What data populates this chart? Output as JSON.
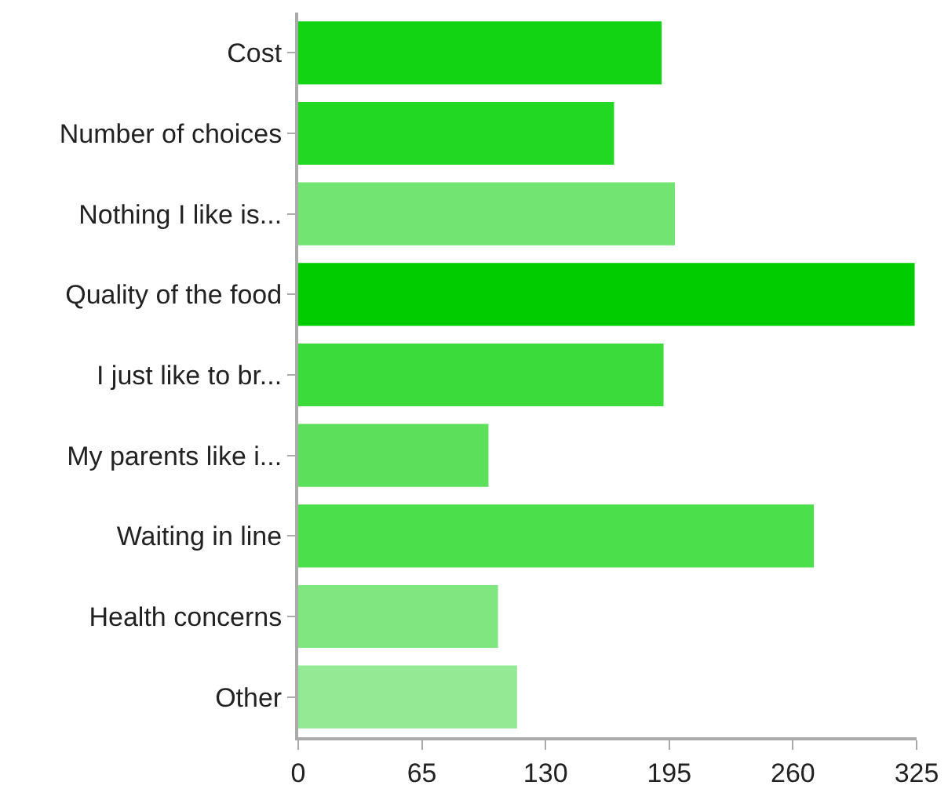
{
  "chart_data": {
    "type": "bar",
    "orientation": "horizontal",
    "categories": [
      "Cost",
      "Number of choices",
      "Nothing I like is...",
      "Quality of the food",
      "I just like to br...",
      "My parents like i...",
      "Waiting in line",
      "Health concerns",
      "Other"
    ],
    "values": [
      191,
      166,
      198,
      324,
      192,
      100,
      271,
      105,
      115
    ],
    "colors": [
      "#12d412",
      "#22d822",
      "#72e472",
      "#00cc00",
      "#3bdb3b",
      "#5ce05c",
      "#4be04b",
      "#80e680",
      "#94ea94"
    ],
    "xlim": [
      0,
      325
    ],
    "xticks": [
      0,
      65,
      130,
      195,
      260,
      325
    ],
    "grid": false
  }
}
